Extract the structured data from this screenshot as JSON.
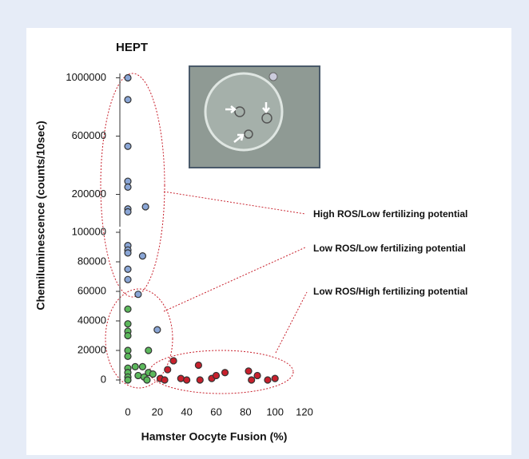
{
  "chart_data": [
    {
      "type": "scatter",
      "title": "HEPT",
      "ylim": [
        0,
        1030000
      ],
      "yticks": [
        200000,
        600000,
        1000000
      ],
      "series": [
        {
          "color": "#8aa6d6",
          "x": [
            0,
            0,
            0,
            0,
            0,
            0,
            0,
            12
          ],
          "values": [
            1000000,
            850000,
            530000,
            290000,
            250000,
            100000,
            80000,
            115000
          ]
        }
      ]
    },
    {
      "type": "scatter",
      "ylabel": "Chemiluminescence (counts/10sec)",
      "xlabel": "Hamster Oocyte Fusion (%)",
      "xlim": [
        0,
        120
      ],
      "xticks": [
        0,
        20,
        40,
        60,
        80,
        100,
        120
      ],
      "ylim": [
        0,
        100000
      ],
      "yticks": [
        0,
        20000,
        40000,
        60000,
        80000,
        100000
      ],
      "series": [
        {
          "color": "#8aa6d6",
          "x": [
            0,
            0,
            0,
            0,
            0,
            10,
            7,
            20
          ],
          "values": [
            91000,
            88000,
            86000,
            75000,
            68000,
            84000,
            58000,
            34000
          ]
        },
        {
          "color": "#5cb85c",
          "x": [
            0,
            0,
            0,
            0,
            0,
            0,
            0,
            0,
            0,
            0,
            5,
            10,
            14,
            7,
            11,
            14,
            17,
            13
          ],
          "values": [
            48000,
            38000,
            33000,
            30000,
            20000,
            16000,
            8000,
            5000,
            2000,
            0,
            9000,
            9000,
            20000,
            3000,
            2000,
            5000,
            4000,
            0
          ]
        },
        {
          "color": "#c8202c",
          "x": [
            22,
            25,
            27,
            31,
            36,
            40,
            48,
            49,
            57,
            60,
            66,
            82,
            84,
            88,
            95,
            100
          ],
          "values": [
            1000,
            0,
            7000,
            13000,
            1000,
            0,
            10000,
            0,
            1000,
            3000,
            5000,
            6000,
            0,
            3000,
            0,
            1000
          ]
        }
      ],
      "annotations": [
        "High ROS/Low fertilizing potential",
        "Low ROS/Low fertilizing potential",
        "Low ROS/High fertilizing potential"
      ]
    }
  ]
}
